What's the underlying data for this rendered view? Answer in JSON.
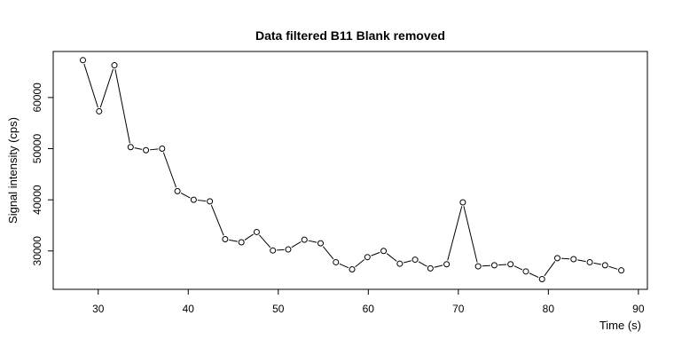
{
  "chart_data": {
    "type": "line",
    "title": "Data filtered B11 Blank removed",
    "xlabel": "Time (s)",
    "ylabel": "Signal intensity (cps)",
    "xlim": [
      25,
      91
    ],
    "ylim": [
      22500,
      69000
    ],
    "xticks": [
      30,
      40,
      50,
      60,
      70,
      80,
      90
    ],
    "yticks": [
      30000,
      40000,
      50000,
      60000
    ],
    "grid": false,
    "markers": "open-circle",
    "series": [
      {
        "x": [
          28.3,
          30.1,
          31.8,
          33.6,
          35.3,
          37.1,
          38.8,
          40.6,
          42.4,
          44.1,
          45.9,
          47.6,
          49.4,
          51.1,
          52.9,
          54.7,
          56.4,
          58.2,
          59.9,
          61.7,
          63.5,
          65.2,
          66.9,
          68.7,
          70.5,
          72.2,
          74.0,
          75.8,
          77.5,
          79.3,
          81.0,
          82.8,
          84.6,
          86.3,
          88.1
        ],
        "y": [
          67300,
          57300,
          66300,
          50300,
          49700,
          50000,
          41700,
          40000,
          39700,
          32300,
          31700,
          33700,
          30100,
          30300,
          32200,
          31500,
          27800,
          26400,
          28800,
          30000,
          27500,
          28300,
          26600,
          27400,
          39500,
          27000,
          27200,
          27400,
          26000,
          24500,
          28600,
          28400,
          27800,
          27200,
          26200
        ]
      }
    ]
  }
}
